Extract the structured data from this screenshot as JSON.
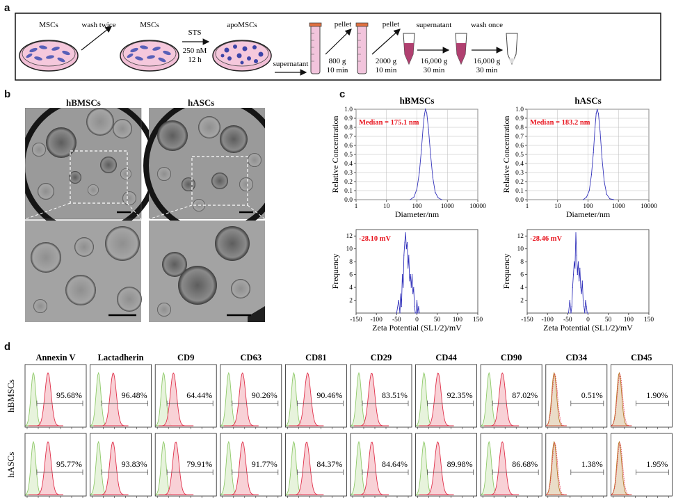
{
  "panels": {
    "a": "a",
    "b": "b",
    "c": "c",
    "d": "d"
  },
  "workflow": {
    "dish1": "MSCs",
    "arrow1": "wash twice",
    "dish2": "MSCs",
    "arrow2_top": "STS",
    "arrow2_line1": "250 nM",
    "arrow2_line2": "12 h",
    "dish3": "apoMSCs",
    "arrow3": "supernatant",
    "step4_label": "pellet",
    "step4_line1": "800 g",
    "step4_line2": "10 min",
    "step5_label": "pellet",
    "step5_line1": "2000 g",
    "step5_line2": "10 min",
    "step6_label": "supernatant",
    "step6_line1": "16,000 g",
    "step6_line2": "30 min",
    "step7_label": "wash once",
    "step7_line1": "16,000 g",
    "step7_line2": "30 min"
  },
  "em": {
    "left_title": "hBMSCs",
    "right_title": "hASCs"
  },
  "chart_data": [
    {
      "type": "line",
      "title": "hBMSCs",
      "xlabel": "Diameter/nm",
      "ylabel": "Relative  Concentration",
      "xscale": "log",
      "xlim": [
        1,
        10000
      ],
      "ylim": [
        0,
        1.0
      ],
      "xticks": [
        "1",
        "10",
        "100",
        "1000",
        "10000"
      ],
      "yticks": [
        "0.0",
        "0.1",
        "0.2",
        "0.3",
        "0.4",
        "0.5",
        "0.6",
        "0.7",
        "0.8",
        "0.9",
        "1.0"
      ],
      "annotation": "Median = 175.1 nm",
      "color": "#3333bb",
      "x": [
        60,
        80,
        100,
        120,
        140,
        160,
        175,
        190,
        210,
        240,
        280,
        330,
        400,
        500,
        650
      ],
      "y": [
        0.0,
        0.03,
        0.12,
        0.3,
        0.55,
        0.8,
        0.93,
        1.0,
        0.96,
        0.78,
        0.5,
        0.25,
        0.08,
        0.02,
        0.0
      ]
    },
    {
      "type": "line",
      "title": "hASCs",
      "xlabel": "Diameter/nm",
      "ylabel": "Relative  Concentration",
      "xscale": "log",
      "xlim": [
        1,
        10000
      ],
      "ylim": [
        0,
        1.0
      ],
      "xticks": [
        "1",
        "10",
        "100",
        "1000",
        "10000"
      ],
      "yticks": [
        "0.0",
        "0.1",
        "0.2",
        "0.3",
        "0.4",
        "0.5",
        "0.6",
        "0.7",
        "0.8",
        "0.9",
        "1.0"
      ],
      "annotation": "Median = 183.2 nm",
      "color": "#3333bb",
      "x": [
        70,
        90,
        110,
        130,
        150,
        170,
        185,
        200,
        220,
        250,
        290,
        340,
        410,
        520,
        700
      ],
      "y": [
        0.0,
        0.03,
        0.1,
        0.28,
        0.52,
        0.8,
        0.95,
        1.0,
        0.95,
        0.75,
        0.45,
        0.2,
        0.06,
        0.01,
        0.0
      ]
    },
    {
      "type": "line",
      "title": "",
      "xlabel": "Zeta Potential (SL1/2)/mV",
      "ylabel": "Frequency",
      "xlim": [
        -150,
        150
      ],
      "ylim": [
        0,
        13
      ],
      "xticks": [
        "-150",
        "-100",
        "-50",
        "0",
        "50",
        "100",
        "150"
      ],
      "yticks": [
        "2",
        "4",
        "6",
        "8",
        "10",
        "12"
      ],
      "annotation": "-28.10 mV",
      "color": "#3333bb",
      "x": [
        -50,
        -45,
        -42,
        -40,
        -38,
        -36,
        -34,
        -32,
        -30,
        -28,
        -26,
        -24,
        -22,
        -20,
        -18,
        -16,
        -14,
        -12,
        -10,
        -8,
        -6,
        -4,
        -2,
        0,
        2,
        4,
        6
      ],
      "y": [
        0,
        2,
        0,
        3,
        1,
        6,
        4,
        9,
        11,
        12.5,
        10,
        11,
        7,
        9,
        5,
        6,
        4,
        6,
        3,
        4,
        1,
        0,
        0,
        2,
        0,
        1,
        0
      ]
    },
    {
      "type": "line",
      "title": "",
      "xlabel": "Zeta Potential (SL1/2)/mV",
      "ylabel": "Frequency",
      "xlim": [
        -150,
        150
      ],
      "ylim": [
        0,
        13
      ],
      "xticks": [
        "-150",
        "-100",
        "-50",
        "0",
        "50",
        "100",
        "150"
      ],
      "yticks": [
        "2",
        "4",
        "6",
        "8",
        "10",
        "12"
      ],
      "annotation": "-28.46 mV",
      "color": "#3333bb",
      "x": [
        -48,
        -45,
        -42,
        -40,
        -38,
        -36,
        -34,
        -32,
        -30,
        -28,
        -26,
        -24,
        -22,
        -20,
        -18,
        -16,
        -14,
        -12,
        -10,
        -8,
        -6,
        -4,
        -2,
        0
      ],
      "y": [
        0,
        2,
        0,
        1,
        4,
        6,
        8,
        7,
        12.5,
        9,
        6,
        8,
        5,
        7,
        4,
        3,
        5,
        2,
        1,
        0,
        2,
        1,
        0,
        0
      ]
    }
  ],
  "flow": {
    "row_labels": [
      "hBMSCs",
      "hASCs"
    ],
    "markers": [
      "Annexin V",
      "Lactadherin",
      "CD9",
      "CD63",
      "CD81",
      "CD29",
      "CD44",
      "CD90",
      "CD34",
      "CD45"
    ],
    "values": [
      [
        "95.68%",
        "96.48%",
        "64.44%",
        "90.26%",
        "90.46%",
        "83.51%",
        "92.35%",
        "87.02%",
        "0.51%",
        "1.90%"
      ],
      [
        "95.77%",
        "93.83%",
        "79.91%",
        "91.77%",
        "84.37%",
        "84.64%",
        "89.98%",
        "86.68%",
        "1.38%",
        "1.95%"
      ]
    ],
    "percent_values": [
      [
        95.68,
        96.48,
        64.44,
        90.26,
        90.46,
        83.51,
        92.35,
        87.02,
        0.51,
        1.9
      ],
      [
        95.77,
        93.83,
        79.91,
        91.77,
        84.37,
        84.64,
        89.98,
        86.68,
        1.38,
        1.95
      ]
    ],
    "colors": {
      "control": "#8fca6a",
      "control_fill": "#e7f3dc",
      "stain": "#e0304a",
      "stain_fill": "#f7c9cf",
      "overlap": "#b8731f",
      "overlap_fill": "#eadcc7"
    }
  }
}
